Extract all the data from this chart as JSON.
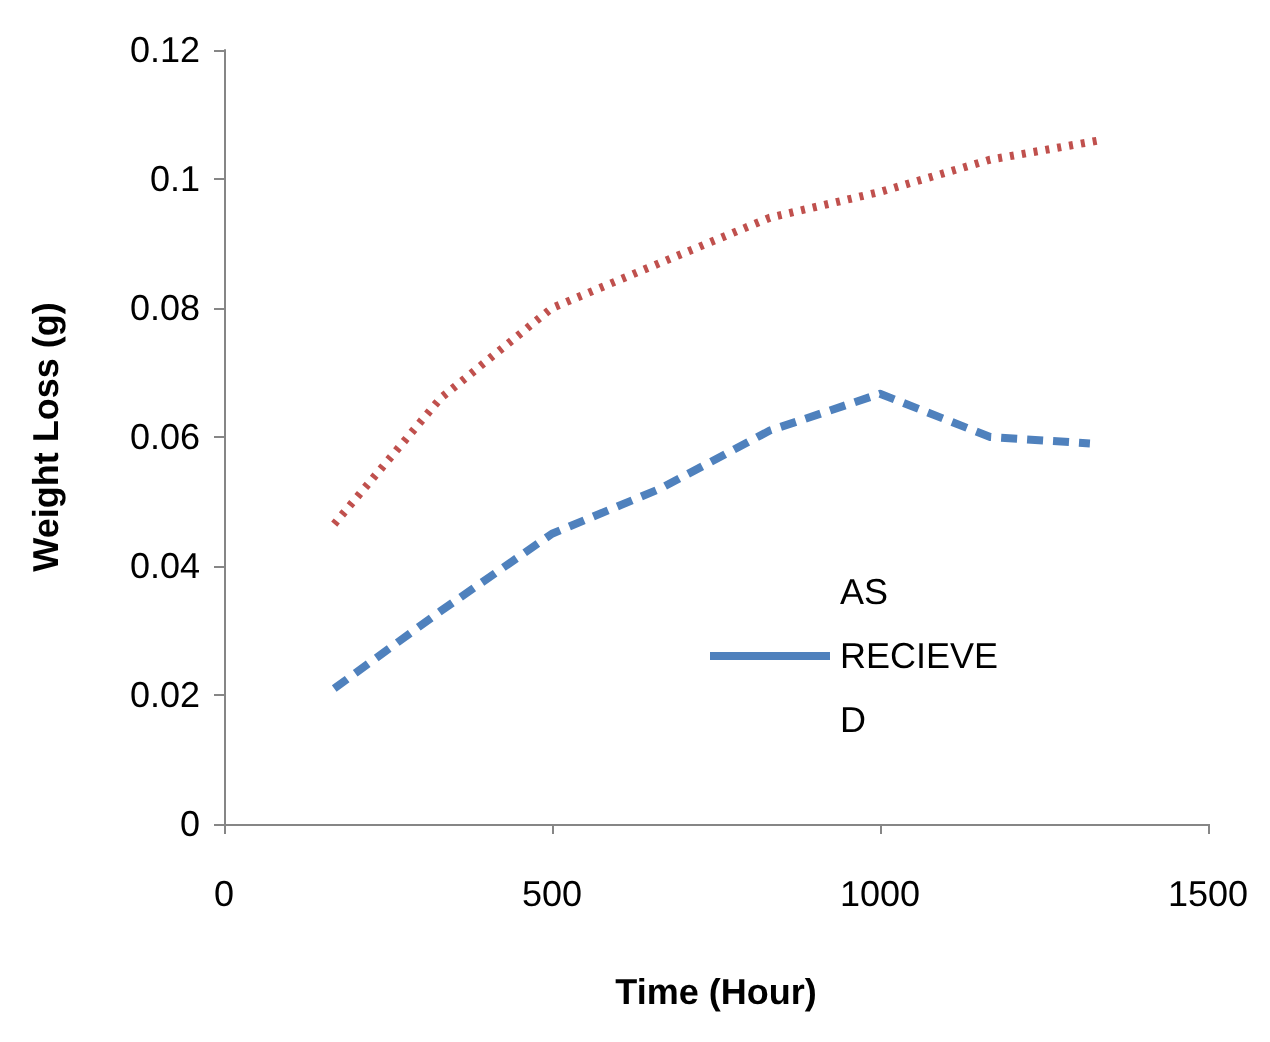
{
  "chart_data": {
    "type": "line",
    "xlabel": "Time (Hour)",
    "ylabel": "Weight Loss (g)",
    "xlim": [
      0,
      1500
    ],
    "xticks": [
      0,
      500,
      1000,
      1500
    ],
    "ylim": [
      0,
      0.12
    ],
    "yticks": [
      0,
      0.02,
      0.04,
      0.06,
      0.08,
      0.1,
      0.12
    ],
    "grid": false,
    "legend": "right",
    "marker": "none",
    "series": [
      {
        "color": "#c0504d",
        "line_style": "dotted",
        "x": [
          168,
          330,
          500,
          665,
          832,
          1000,
          1168,
          1335
        ],
        "values": [
          0.0465,
          0.066,
          0.08,
          0.087,
          0.094,
          0.098,
          0.103,
          0.106
        ]
      },
      {
        "name": "AS RECIEVED",
        "color": "#4f81bd",
        "line_style": "dashed",
        "x": [
          168,
          330,
          500,
          665,
          832,
          1000,
          1168,
          1320
        ],
        "values": [
          0.021,
          0.033,
          0.045,
          0.052,
          0.061,
          0.0667,
          0.06,
          0.059
        ]
      }
    ]
  }
}
